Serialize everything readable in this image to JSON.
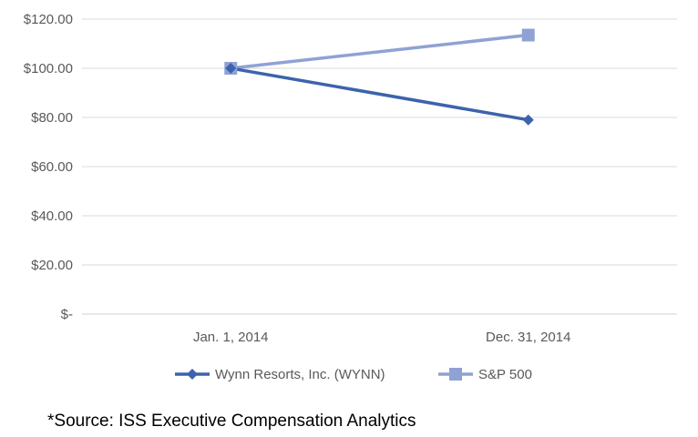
{
  "chart_data": {
    "type": "line",
    "categories": [
      "Jan. 1, 2014",
      "Dec. 31, 2014"
    ],
    "series": [
      {
        "name": "Wynn Resorts, Inc. (WYNN)",
        "values": [
          100.0,
          79.0
        ],
        "color": "#3c63ac",
        "marker": "diamond"
      },
      {
        "name": "S&P 500",
        "values": [
          100.0,
          113.5
        ],
        "color": "#8fa2d4",
        "marker": "square"
      }
    ],
    "y_ticks": [
      {
        "value": 0,
        "label": "$-"
      },
      {
        "value": 20,
        "label": "$20.00"
      },
      {
        "value": 40,
        "label": "$40.00"
      },
      {
        "value": 60,
        "label": "$60.00"
      },
      {
        "value": 80,
        "label": "$80.00"
      },
      {
        "value": 100,
        "label": "$100.00"
      },
      {
        "value": 120,
        "label": "$120.00"
      }
    ],
    "ylim": [
      0,
      120
    ],
    "grid": true,
    "legend": "bottom",
    "title": "",
    "xlabel": "",
    "ylabel": ""
  },
  "footnote": "*Source: ISS Executive Compensation Analytics"
}
